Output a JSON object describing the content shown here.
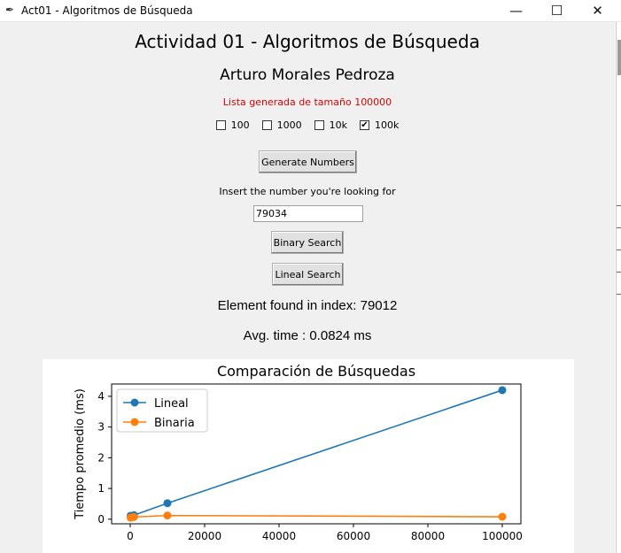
{
  "window": {
    "title": "Act01 - Algoritmos de Búsqueda",
    "minimize_glyph": "—",
    "maximize_glyph": "☐",
    "close_glyph": "✕"
  },
  "header": {
    "title": "Actividad 01 - Algoritmos de Búsqueda",
    "author": "Arturo Morales Pedroza",
    "status_message": "Lista generada de tamaño 100000",
    "status_color": "#e00000"
  },
  "size_options": [
    {
      "label": "100",
      "checked": false
    },
    {
      "label": "1000",
      "checked": false
    },
    {
      "label": "10k",
      "checked": false
    },
    {
      "label": "100k",
      "checked": true
    }
  ],
  "controls": {
    "generate_label": "Generate Numbers",
    "prompt_label": "Insert the number you're looking for",
    "search_value": "79034",
    "binary_label": "Binary Search",
    "lineal_label": "Lineal Search"
  },
  "results": {
    "found_label": "Element found in index:  79012",
    "time_label": "Avg. time : 0.0824 ms"
  },
  "chart_data": {
    "type": "line",
    "title": "Comparación de Búsquedas",
    "xlabel": "",
    "ylabel": "Tiempo promedio (ms)",
    "xlim": [
      -5000,
      105000
    ],
    "ylim": [
      -0.15,
      4.4
    ],
    "xticks": [
      0,
      20000,
      40000,
      60000,
      80000,
      100000
    ],
    "yticks": [
      0,
      1,
      2,
      3,
      4
    ],
    "legend_position": "top-left",
    "grid": false,
    "series": [
      {
        "name": "Lineal",
        "color": "#1f77b4",
        "x": [
          100,
          1000,
          10000,
          100000
        ],
        "y": [
          0.11,
          0.13,
          0.52,
          4.2
        ]
      },
      {
        "name": "Binaria",
        "color": "#ff7f0e",
        "x": [
          100,
          1000,
          10000,
          100000
        ],
        "y": [
          0.05,
          0.07,
          0.12,
          0.08
        ]
      }
    ]
  }
}
